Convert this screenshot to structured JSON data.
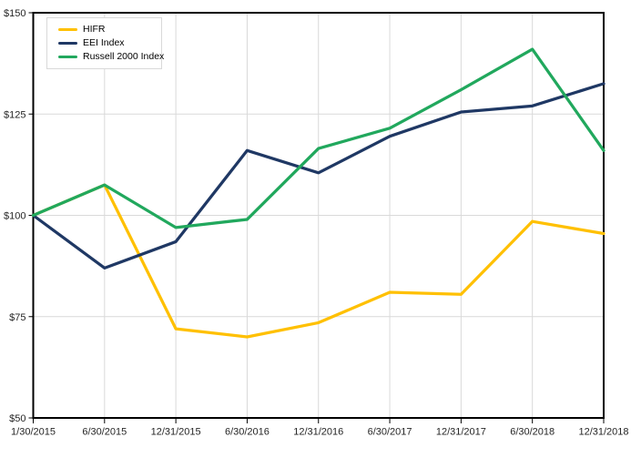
{
  "chart_data": {
    "type": "line",
    "title": "",
    "categories": [
      "1/30/2015",
      "6/30/2015",
      "12/31/2015",
      "6/30/2016",
      "12/31/2016",
      "6/30/2017",
      "12/31/2017",
      "6/30/2018",
      "12/31/2018"
    ],
    "series": [
      {
        "name": "HIFR",
        "color": "#FFC000",
        "values": [
          100,
          107.5,
          72,
          70,
          73.5,
          81,
          80.5,
          98.5,
          95.5
        ]
      },
      {
        "name": "EEI Index",
        "color": "#1F3864",
        "values": [
          100,
          87,
          93.5,
          116,
          110.5,
          119.5,
          125.5,
          127,
          132.5
        ]
      },
      {
        "name": "Russell 2000 Index",
        "color": "#21A85D",
        "values": [
          100,
          107.5,
          97,
          99,
          116.5,
          121.5,
          131,
          141,
          116
        ]
      }
    ],
    "y_ticks": [
      50,
      75,
      100,
      125,
      150
    ],
    "y_tick_prefix": "$",
    "y_tick_labels": [
      "$50",
      "$75",
      "$100",
      "$125",
      "$150"
    ],
    "ylim": [
      50,
      150
    ],
    "xlabel": "",
    "ylabel": "",
    "grid": true,
    "legend_position": "top-left",
    "gridline_color": "#D9D9D9",
    "axis_color": "#000000",
    "label_color": "#262626",
    "background_color": "#FFFFFF"
  }
}
